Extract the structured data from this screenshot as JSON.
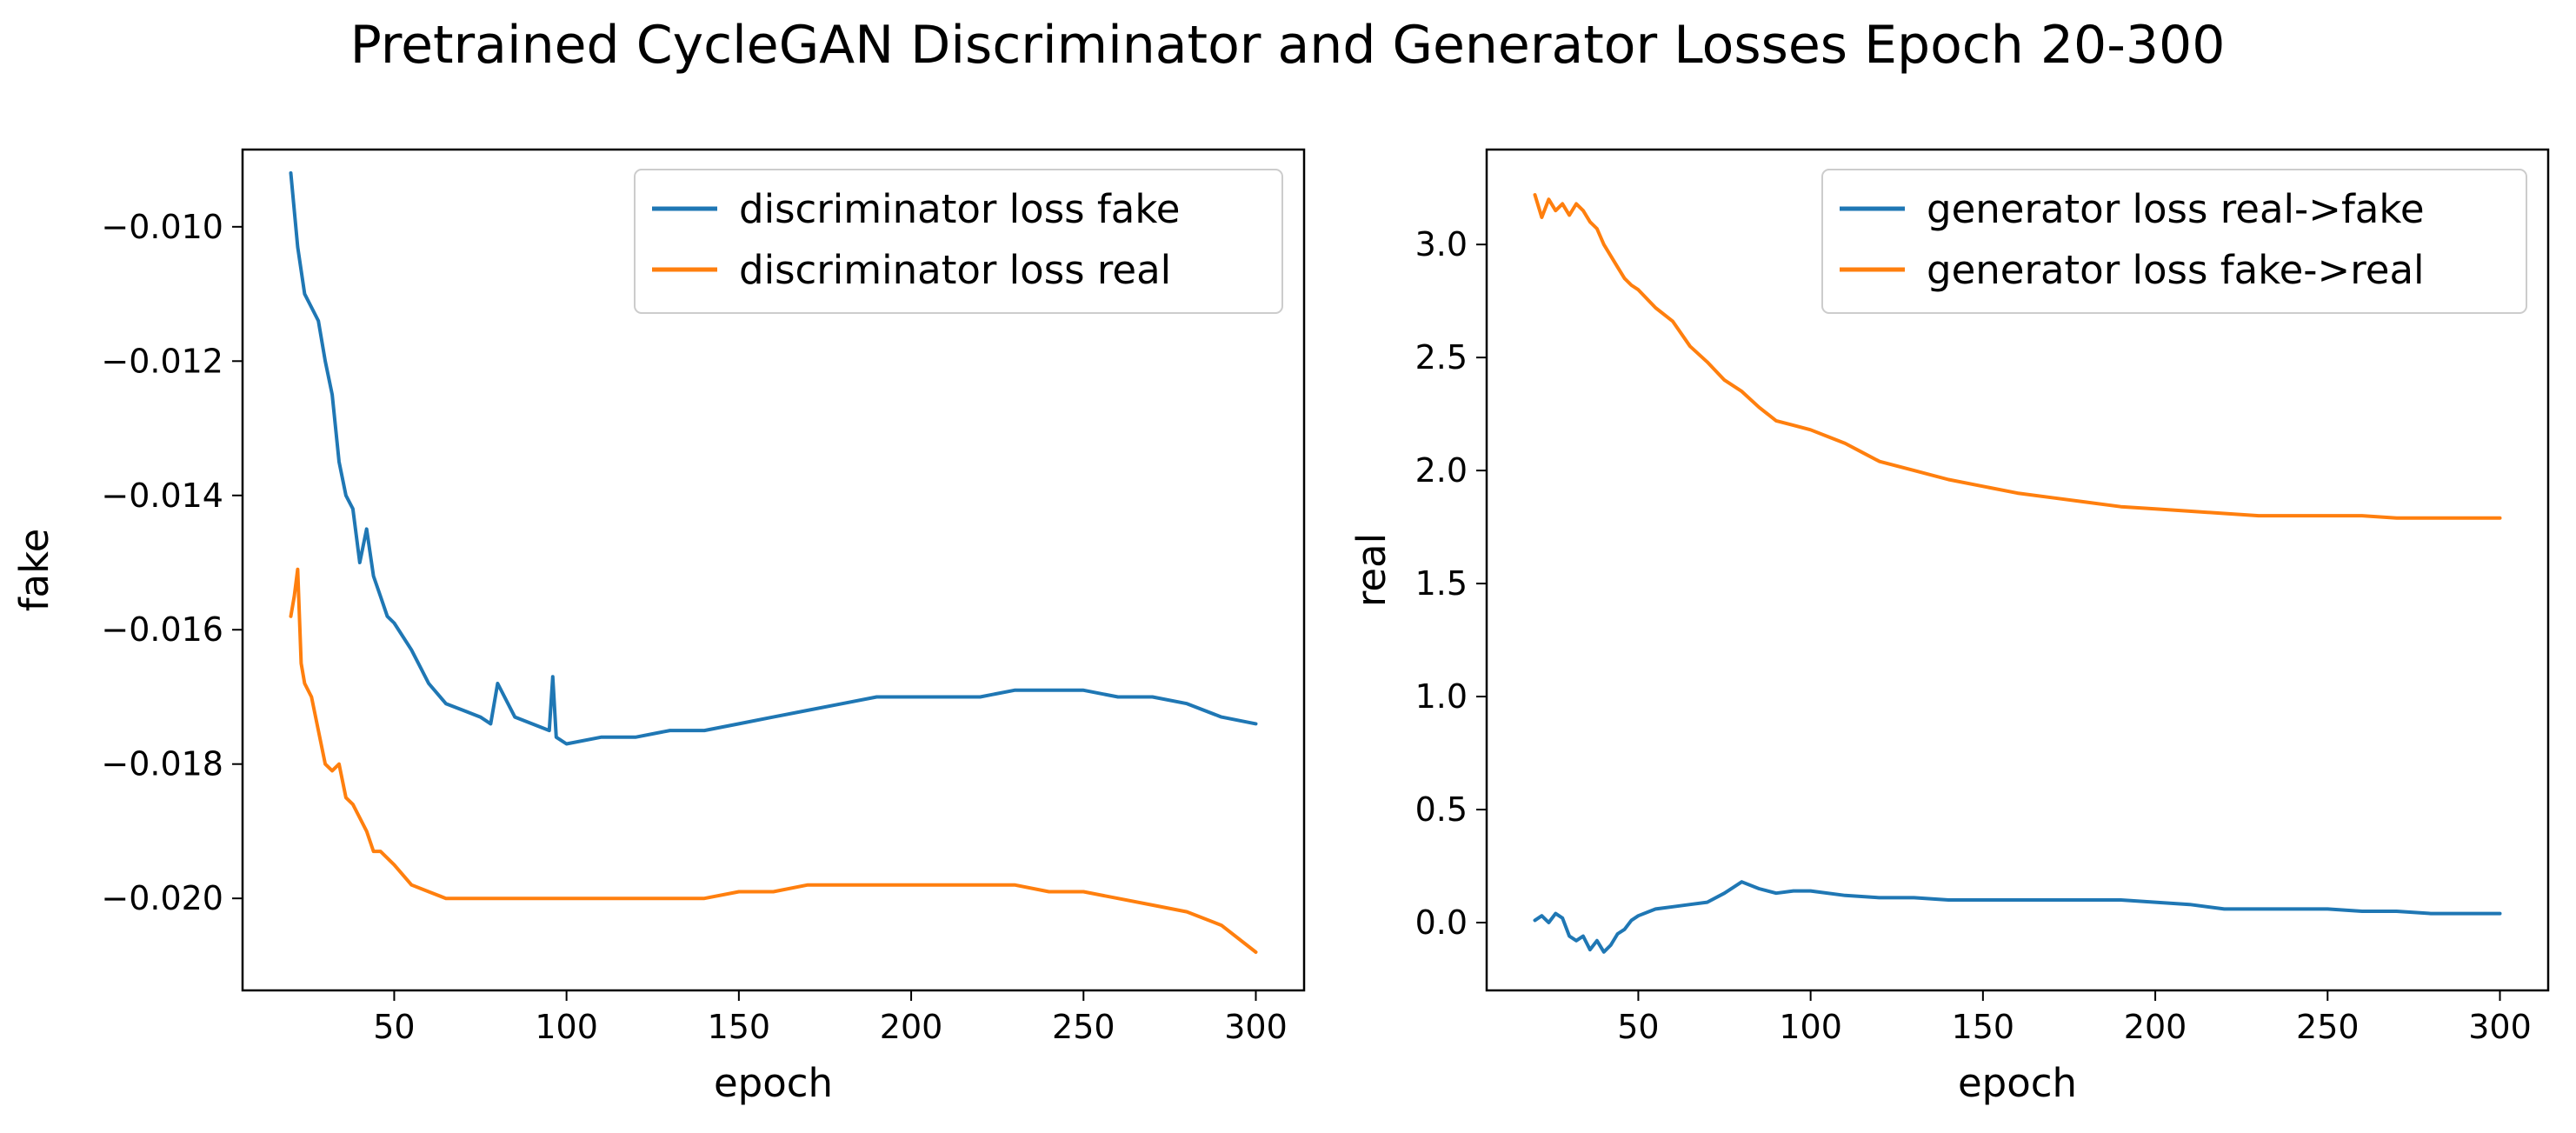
{
  "suptitle": "Pretrained CycleGAN Discriminator and Generator Losses Epoch 20-300",
  "colors": {
    "series_1": "#1f77b4",
    "series_2": "#ff7f0e",
    "axes": "#000000",
    "legend_border": "#cccccc"
  },
  "chart_data": [
    {
      "type": "line",
      "title": "",
      "xlabel": "epoch",
      "ylabel": "fake",
      "xlim": [
        6,
        314
      ],
      "ylim": [
        -0.02137,
        -0.00885
      ],
      "xticks": [
        50,
        100,
        150,
        200,
        250,
        300
      ],
      "xtick_labels": [
        "50",
        "100",
        "150",
        "200",
        "250",
        "300"
      ],
      "yticks": [
        -0.01,
        -0.012,
        -0.014,
        -0.016,
        -0.018,
        -0.02
      ],
      "ytick_labels": [
        "−0.010",
        "−0.012",
        "−0.014",
        "−0.016",
        "−0.018",
        "−0.020"
      ],
      "grid": false,
      "legend_position": "top-right",
      "series": [
        {
          "name": "discriminator loss fake",
          "color": "#1f77b4",
          "x": [
            20,
            22,
            24,
            26,
            28,
            30,
            32,
            34,
            36,
            38,
            40,
            42,
            44,
            46,
            48,
            50,
            55,
            60,
            65,
            70,
            75,
            78,
            80,
            85,
            90,
            95,
            96,
            97,
            100,
            110,
            120,
            130,
            140,
            150,
            160,
            170,
            180,
            190,
            200,
            210,
            220,
            230,
            240,
            250,
            260,
            270,
            280,
            290,
            300
          ],
          "y": [
            -0.0092,
            -0.0103,
            -0.011,
            -0.0112,
            -0.0114,
            -0.012,
            -0.0125,
            -0.0135,
            -0.014,
            -0.0142,
            -0.015,
            -0.0145,
            -0.0152,
            -0.0155,
            -0.0158,
            -0.0159,
            -0.0163,
            -0.0168,
            -0.0171,
            -0.0172,
            -0.0173,
            -0.0174,
            -0.0168,
            -0.0173,
            -0.0174,
            -0.0175,
            -0.0167,
            -0.0176,
            -0.0177,
            -0.0176,
            -0.0176,
            -0.0175,
            -0.0175,
            -0.0174,
            -0.0173,
            -0.0172,
            -0.0171,
            -0.017,
            -0.017,
            -0.017,
            -0.017,
            -0.0169,
            -0.0169,
            -0.0169,
            -0.017,
            -0.017,
            -0.0171,
            -0.0173,
            -0.0174
          ]
        },
        {
          "name": "discriminator loss real",
          "color": "#ff7f0e",
          "x": [
            20,
            21,
            22,
            23,
            24,
            26,
            28,
            30,
            32,
            34,
            36,
            38,
            40,
            42,
            44,
            46,
            48,
            50,
            55,
            60,
            65,
            70,
            80,
            90,
            100,
            110,
            120,
            130,
            140,
            150,
            160,
            170,
            180,
            190,
            200,
            210,
            220,
            230,
            240,
            250,
            260,
            270,
            280,
            290,
            300
          ],
          "y": [
            -0.0158,
            -0.0155,
            -0.0151,
            -0.0165,
            -0.0168,
            -0.017,
            -0.0175,
            -0.018,
            -0.0181,
            -0.018,
            -0.0185,
            -0.0186,
            -0.0188,
            -0.019,
            -0.0193,
            -0.0193,
            -0.0194,
            -0.0195,
            -0.0198,
            -0.0199,
            -0.02,
            -0.02,
            -0.02,
            -0.02,
            -0.02,
            -0.02,
            -0.02,
            -0.02,
            -0.02,
            -0.0199,
            -0.0199,
            -0.0198,
            -0.0198,
            -0.0198,
            -0.0198,
            -0.0198,
            -0.0198,
            -0.0198,
            -0.0199,
            -0.0199,
            -0.02,
            -0.0201,
            -0.0202,
            -0.0204,
            -0.0208
          ]
        }
      ]
    },
    {
      "type": "line",
      "title": "",
      "xlabel": "epoch",
      "ylabel": "real",
      "xlim": [
        6,
        314
      ],
      "ylim": [
        -0.3,
        3.42
      ],
      "xticks": [
        50,
        100,
        150,
        200,
        250,
        300
      ],
      "xtick_labels": [
        "50",
        "100",
        "150",
        "200",
        "250",
        "300"
      ],
      "yticks": [
        0.0,
        0.5,
        1.0,
        1.5,
        2.0,
        2.5,
        3.0
      ],
      "ytick_labels": [
        "0.0",
        "0.5",
        "1.0",
        "1.5",
        "2.0",
        "2.5",
        "3.0"
      ],
      "grid": false,
      "legend_position": "top-right",
      "series": [
        {
          "name": "generator loss real->fake",
          "color": "#1f77b4",
          "x": [
            20,
            22,
            24,
            26,
            28,
            30,
            32,
            34,
            36,
            38,
            40,
            42,
            44,
            46,
            48,
            50,
            55,
            60,
            65,
            70,
            75,
            80,
            85,
            90,
            95,
            100,
            110,
            120,
            130,
            140,
            150,
            160,
            170,
            180,
            190,
            200,
            210,
            220,
            230,
            240,
            250,
            260,
            270,
            280,
            290,
            300
          ],
          "y": [
            0.01,
            0.03,
            0.0,
            0.04,
            0.02,
            -0.06,
            -0.08,
            -0.06,
            -0.12,
            -0.08,
            -0.13,
            -0.1,
            -0.05,
            -0.03,
            0.01,
            0.03,
            0.06,
            0.07,
            0.08,
            0.09,
            0.13,
            0.18,
            0.15,
            0.13,
            0.14,
            0.14,
            0.12,
            0.11,
            0.11,
            0.1,
            0.1,
            0.1,
            0.1,
            0.1,
            0.1,
            0.09,
            0.08,
            0.06,
            0.06,
            0.06,
            0.06,
            0.05,
            0.05,
            0.04,
            0.04,
            0.04
          ]
        },
        {
          "name": "generator loss fake->real",
          "color": "#ff7f0e",
          "x": [
            20,
            22,
            24,
            26,
            28,
            30,
            32,
            34,
            36,
            38,
            40,
            42,
            44,
            46,
            48,
            50,
            55,
            60,
            65,
            70,
            75,
            80,
            85,
            90,
            95,
            100,
            105,
            110,
            115,
            120,
            130,
            140,
            150,
            160,
            170,
            180,
            190,
            200,
            210,
            220,
            230,
            240,
            250,
            260,
            270,
            280,
            290,
            300
          ],
          "y": [
            3.22,
            3.12,
            3.2,
            3.15,
            3.18,
            3.13,
            3.18,
            3.15,
            3.1,
            3.07,
            3.0,
            2.95,
            2.9,
            2.85,
            2.82,
            2.8,
            2.72,
            2.66,
            2.55,
            2.48,
            2.4,
            2.35,
            2.28,
            2.22,
            2.2,
            2.18,
            2.15,
            2.12,
            2.08,
            2.04,
            2.0,
            1.96,
            1.93,
            1.9,
            1.88,
            1.86,
            1.84,
            1.83,
            1.82,
            1.81,
            1.8,
            1.8,
            1.8,
            1.8,
            1.79,
            1.79,
            1.79,
            1.79
          ]
        }
      ]
    }
  ]
}
